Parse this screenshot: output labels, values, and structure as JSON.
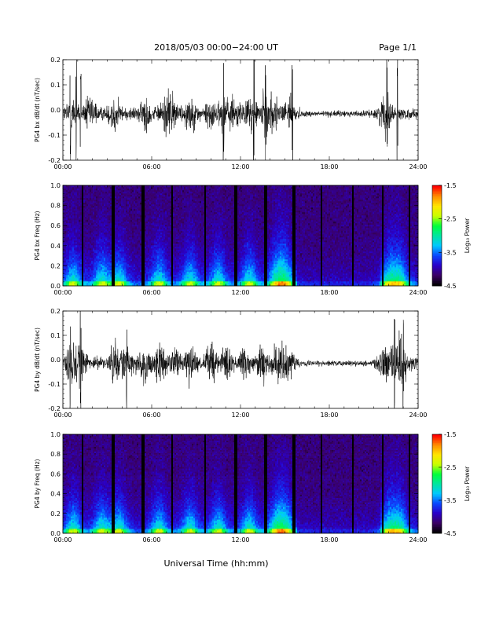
{
  "header": {
    "title": "2018/05/03  00:00−24:00 UT",
    "page": "Page 1/1"
  },
  "xlabel": "Universal Time (hh:mm)",
  "colorbar": {
    "label": "Log₁₀ Power",
    "ticks": [
      "-1.5",
      "-2.5",
      "-3.5",
      "-4.5"
    ],
    "range": [
      -4.5,
      -1.5
    ],
    "colors": [
      "#000000",
      "#3a0064",
      "#2a00c8",
      "#0a46ff",
      "#00c8ff",
      "#00e6a0",
      "#00ff3c",
      "#c8ff00",
      "#ffe600",
      "#ff8c00",
      "#ff0000"
    ]
  },
  "chart_data": [
    {
      "type": "line",
      "name": "bx-waveform",
      "ylabel": "PG4 bx dB/dt (nT/sec)",
      "x_ticks": [
        "00:00",
        "06:00",
        "12:00",
        "18:00",
        "24:00"
      ],
      "y_ticks": [
        "0.2",
        "0.1",
        "0.0",
        "-0.1",
        "-0.2"
      ],
      "xlim": [
        0,
        24
      ],
      "ylim": [
        -0.2,
        0.2
      ],
      "activity_hours": [
        0.6,
        1.8,
        3.5,
        5.6,
        7.0,
        7.5,
        8.6,
        10.0,
        10.9,
        11.6,
        12.7,
        13.6,
        14.2,
        15.3,
        21.8
      ],
      "spike_hours": [
        0.5,
        0.9,
        1.2,
        10.85,
        12.9,
        13.7,
        15.5,
        21.9,
        22.6
      ]
    },
    {
      "type": "heatmap",
      "name": "bx-spectrogram",
      "ylabel": "PG4 bx Freq (Hz)",
      "x_ticks": [
        "00:00",
        "06:00",
        "12:00",
        "18:00",
        "24:00"
      ],
      "y_ticks": [
        "1.0",
        "0.8",
        "0.6",
        "0.4",
        "0.2",
        "0.0"
      ],
      "xlim": [
        0,
        24
      ],
      "ylim": [
        0.0,
        1.0
      ],
      "gap_hours": [
        1.3,
        3.4,
        5.4,
        7.4,
        9.6,
        11.6,
        11.7,
        13.7,
        15.6,
        17.5,
        19.6,
        21.6,
        23.4
      ]
    },
    {
      "type": "line",
      "name": "by-waveform",
      "ylabel": "PG4 by dB/dt (nT/sec)",
      "x_ticks": [
        "00:00",
        "06:00",
        "12:00",
        "18:00",
        "24:00"
      ],
      "y_ticks": [
        "0.2",
        "0.1",
        "0.0",
        "-0.1",
        "-0.2"
      ],
      "xlim": [
        0,
        24
      ],
      "ylim": [
        -0.2,
        0.2
      ],
      "activity_hours": [
        0.5,
        1.2,
        3.5,
        4.3,
        5.5,
        6.5,
        7.5,
        8.6,
        10.0,
        11.0,
        12.3,
        13.5,
        14.5,
        15.2,
        21.8,
        22.5,
        23.0
      ],
      "spike_hours": [
        0.5,
        1.2,
        4.3,
        22.4,
        23.0
      ]
    },
    {
      "type": "heatmap",
      "name": "by-spectrogram",
      "ylabel": "PG4 by Freq (Hz)",
      "x_ticks": [
        "00:00",
        "06:00",
        "12:00",
        "18:00",
        "24:00"
      ],
      "y_ticks": [
        "1.0",
        "0.8",
        "0.6",
        "0.4",
        "0.2",
        "0.0"
      ],
      "xlim": [
        0,
        24
      ],
      "ylim": [
        0.0,
        1.0
      ],
      "gap_hours": [
        1.3,
        3.4,
        5.4,
        7.4,
        9.6,
        11.6,
        11.7,
        13.7,
        15.6,
        17.5,
        19.6,
        21.6,
        23.4
      ]
    }
  ]
}
